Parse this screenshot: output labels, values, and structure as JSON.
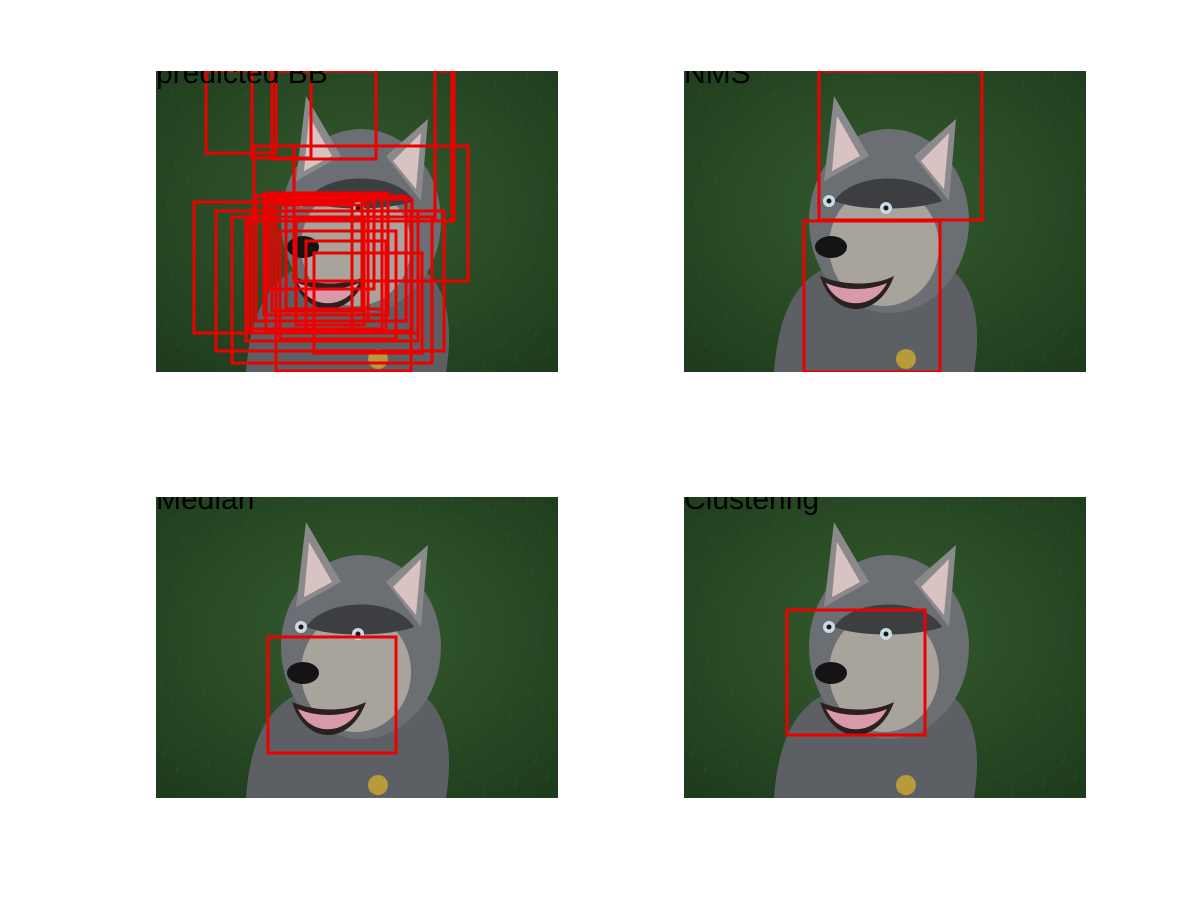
{
  "colors": {
    "box": "#ee0000",
    "grass": "#2a4a25"
  },
  "panels": [
    {
      "title": "predicted BB",
      "boxes": [
        {
          "x1": 50,
          "y1": 0,
          "x2": 120,
          "y2": 82
        },
        {
          "x1": 96,
          "y1": 0,
          "x2": 155,
          "y2": 87
        },
        {
          "x1": 116,
          "y1": 0,
          "x2": 220,
          "y2": 88
        },
        {
          "x1": 138,
          "y1": 75,
          "x2": 312,
          "y2": 210
        },
        {
          "x1": 98,
          "y1": 75,
          "x2": 298,
          "y2": 150
        },
        {
          "x1": 38,
          "y1": 131,
          "x2": 196,
          "y2": 262
        },
        {
          "x1": 60,
          "y1": 140,
          "x2": 288,
          "y2": 280
        },
        {
          "x1": 76,
          "y1": 146,
          "x2": 276,
          "y2": 292
        },
        {
          "x1": 90,
          "y1": 150,
          "x2": 262,
          "y2": 270
        },
        {
          "x1": 110,
          "y1": 128,
          "x2": 256,
          "y2": 260
        },
        {
          "x1": 120,
          "y1": 300,
          "x2": 255,
          "y2": 140
        },
        {
          "x1": 100,
          "y1": 125,
          "x2": 250,
          "y2": 250
        },
        {
          "x1": 92,
          "y1": 146,
          "x2": 226,
          "y2": 258
        },
        {
          "x1": 108,
          "y1": 122,
          "x2": 232,
          "y2": 244
        },
        {
          "x1": 116,
          "y1": 124,
          "x2": 206,
          "y2": 240
        },
        {
          "x1": 120,
          "y1": 134,
          "x2": 212,
          "y2": 250
        },
        {
          "x1": 130,
          "y1": 126,
          "x2": 226,
          "y2": 238
        },
        {
          "x1": 96,
          "y1": 140,
          "x2": 262,
          "y2": 262
        },
        {
          "x1": 124,
          "y1": 160,
          "x2": 240,
          "y2": 268
        },
        {
          "x1": 140,
          "y1": 148,
          "x2": 208,
          "y2": 254
        },
        {
          "x1": 158,
          "y1": 182,
          "x2": 266,
          "y2": 282
        },
        {
          "x1": 150,
          "y1": 170,
          "x2": 230,
          "y2": 262
        },
        {
          "x1": 112,
          "y1": 130,
          "x2": 218,
          "y2": 218
        },
        {
          "x1": 279,
          "y1": 0,
          "x2": 298,
          "y2": 150
        },
        {
          "x1": 296,
          "y1": 0,
          "x2": 298,
          "y2": 150
        }
      ]
    },
    {
      "title": "NMS",
      "boxes": [
        {
          "x1": 135,
          "y1": 0,
          "x2": 298,
          "y2": 149
        },
        {
          "x1": 120,
          "y1": 150,
          "x2": 256,
          "y2": 301
        }
      ]
    },
    {
      "title": "Median",
      "boxes": [
        {
          "x1": 112,
          "y1": 140,
          "x2": 240,
          "y2": 256
        }
      ]
    },
    {
      "title": "Clustering",
      "boxes": [
        {
          "x1": 103,
          "y1": 113,
          "x2": 241,
          "y2": 238
        }
      ]
    }
  ]
}
